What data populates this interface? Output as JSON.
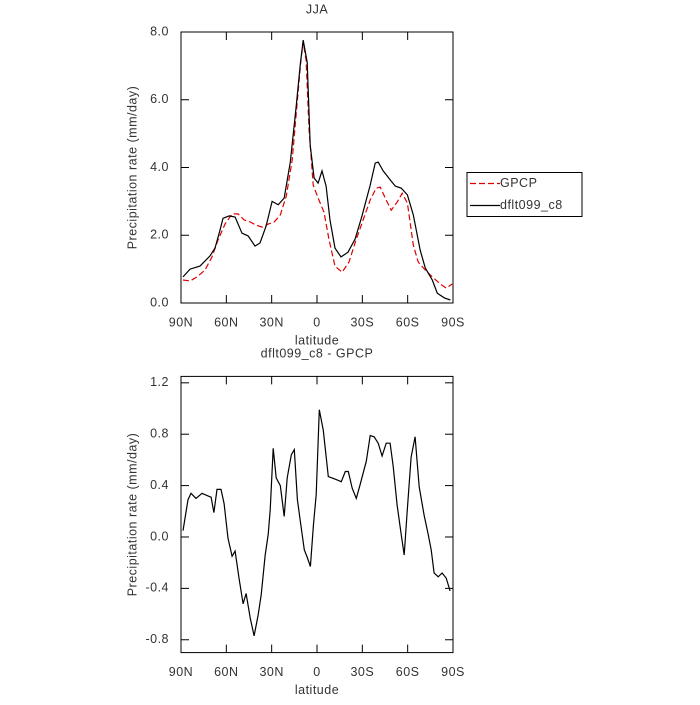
{
  "chart_data": [
    {
      "type": "line",
      "title": "JJA",
      "xlabel": "latitude",
      "ylabel": "Precipitation rate (mm/day)",
      "xlim": [
        90,
        -90
      ],
      "ylim": [
        0,
        8
      ],
      "xticks": [
        {
          "value": 90,
          "label": "90N"
        },
        {
          "value": 60,
          "label": "60N"
        },
        {
          "value": 30,
          "label": "30N"
        },
        0,
        {
          "value": -30,
          "label": "30S"
        },
        {
          "value": -60,
          "label": "60S"
        },
        {
          "value": -90,
          "label": "90S"
        }
      ],
      "yticks": [
        {
          "value": 0,
          "label": "0.0"
        },
        {
          "value": 2,
          "label": "2.0"
        },
        {
          "value": 4,
          "label": "4.0"
        },
        {
          "value": 6,
          "label": "6.0"
        },
        {
          "value": 8,
          "label": "8.0"
        }
      ],
      "legend": "right",
      "series": [
        {
          "name": "GPCP",
          "color": "#e00000",
          "dashed": true,
          "x": [
            88.7,
            84,
            79.4,
            74.1,
            69.5,
            65.5,
            60.9,
            56.2,
            52.2,
            48.2,
            44.2,
            40.3,
            36.3,
            32.3,
            28.3,
            24.3,
            20.3,
            16.4,
            13.0,
            10.5,
            9.1,
            7.2,
            5.2,
            2.5,
            -0.7,
            -4.6,
            -8.0,
            -11.9,
            -16.6,
            -21.2,
            -25.8,
            -30.5,
            -35.2,
            -39.1,
            -41.8,
            -45.8,
            -49.1,
            -53.1,
            -56.4,
            -59.8,
            -63.7,
            -67.0,
            -71.7,
            -76.3,
            -81.6,
            -85.5,
            -89.5
          ],
          "values": [
            0.68,
            0.65,
            0.77,
            0.97,
            1.36,
            1.86,
            2.33,
            2.63,
            2.63,
            2.45,
            2.39,
            2.3,
            2.24,
            2.33,
            2.39,
            2.6,
            3.16,
            4.22,
            5.99,
            7.23,
            7.7,
            7.17,
            5.1,
            3.48,
            3.1,
            2.68,
            1.86,
            1.09,
            0.91,
            1.21,
            1.86,
            2.45,
            3.04,
            3.39,
            3.42,
            3.04,
            2.74,
            2.98,
            3.24,
            2.95,
            1.71,
            1.21,
            0.97,
            0.77,
            0.56,
            0.44,
            0.56
          ]
        },
        {
          "name": "dflt099_c8",
          "color": "#000000",
          "dashed": false,
          "x": [
            88.7,
            84,
            77.4,
            70.8,
            67.5,
            64.2,
            62.2,
            58.2,
            54.2,
            49.6,
            45.6,
            41.0,
            37.7,
            33.7,
            29.7,
            25.7,
            21.7,
            17.7,
            13.7,
            11.1,
            9.1,
            6.5,
            4.5,
            1.9,
            -0.7,
            -3.3,
            -6.0,
            -8.6,
            -11.9,
            -15.9,
            -20.5,
            -25.2,
            -29.8,
            -35.2,
            -38.5,
            -40.5,
            -43.8,
            -48.5,
            -51.8,
            -55.8,
            -59.8,
            -63.7,
            -68.3,
            -71.7,
            -76.3,
            -79.6,
            -84.3,
            -88.3
          ],
          "values": [
            0.77,
            1.0,
            1.09,
            1.39,
            1.62,
            2.15,
            2.5,
            2.57,
            2.54,
            2.06,
            1.98,
            1.68,
            1.77,
            2.27,
            3.0,
            2.9,
            3.1,
            4.16,
            5.84,
            7.02,
            7.76,
            7.1,
            4.66,
            3.69,
            3.54,
            3.9,
            3.45,
            2.45,
            1.62,
            1.36,
            1.5,
            1.89,
            2.57,
            3.48,
            4.13,
            4.16,
            3.9,
            3.63,
            3.45,
            3.39,
            3.19,
            2.6,
            1.56,
            1.03,
            0.68,
            0.29,
            0.15,
            0.09
          ]
        }
      ]
    },
    {
      "type": "line",
      "title": "dflt099_c8 - GPCP",
      "xlabel": "latitude",
      "ylabel": "Precipitation rate (mm/day)",
      "xlim": [
        90,
        -90
      ],
      "ylim": [
        -0.9,
        1.25
      ],
      "xticks": [
        {
          "value": 90,
          "label": "90N"
        },
        {
          "value": 60,
          "label": "60N"
        },
        {
          "value": 30,
          "label": "30N"
        },
        0,
        {
          "value": -30,
          "label": "30S"
        },
        {
          "value": -60,
          "label": "60S"
        },
        {
          "value": -90,
          "label": "90S"
        }
      ],
      "yticks": [
        -0.8,
        -0.4,
        {
          "value": 0,
          "label": "0.0"
        },
        0.4,
        0.8,
        1.2
      ],
      "color": "#000000",
      "x": [
        88.7,
        85.4,
        83.4,
        80.1,
        76.1,
        72.1,
        70.1,
        68.2,
        66.2,
        63.5,
        61.5,
        58.9,
        56.2,
        54.2,
        51.6,
        48.9,
        46.9,
        44.2,
        41.6,
        39.0,
        36.9,
        34.3,
        32.3,
        31.0,
        29.0,
        27.0,
        24.3,
        21.7,
        19.7,
        17.0,
        15.0,
        13.0,
        11.1,
        8.4,
        6.4,
        4.4,
        2.4,
        0.5,
        -1.5,
        -4.2,
        -7.5,
        -12.1,
        -16.1,
        -18.7,
        -20.7,
        -23.3,
        -26.0,
        -28.6,
        -32.6,
        -35.2,
        -37.8,
        -40.5,
        -43.1,
        -45.8,
        -48.4,
        -50.4,
        -53.0,
        -55.7,
        -57.7,
        -59.6,
        -62.3,
        -64.9,
        -67.6,
        -70.9,
        -73.6,
        -75.6,
        -77.5,
        -80.2,
        -82.8,
        -85.5,
        -88.1
      ],
      "values": [
        0.05,
        0.29,
        0.34,
        0.3,
        0.34,
        0.32,
        0.31,
        0.19,
        0.37,
        0.37,
        0.26,
        -0.01,
        -0.15,
        -0.11,
        -0.32,
        -0.52,
        -0.44,
        -0.63,
        -0.77,
        -0.61,
        -0.45,
        -0.14,
        0.02,
        0.21,
        0.69,
        0.46,
        0.4,
        0.16,
        0.46,
        0.64,
        0.68,
        0.29,
        0.13,
        -0.1,
        -0.16,
        -0.23,
        0.09,
        0.33,
        0.99,
        0.83,
        0.47,
        0.45,
        0.43,
        0.51,
        0.51,
        0.38,
        0.3,
        0.41,
        0.59,
        0.79,
        0.78,
        0.73,
        0.63,
        0.73,
        0.73,
        0.55,
        0.25,
        0.02,
        -0.14,
        0.19,
        0.62,
        0.78,
        0.39,
        0.17,
        0.02,
        -0.1,
        -0.28,
        -0.31,
        -0.28,
        -0.32,
        -0.42
      ]
    }
  ]
}
